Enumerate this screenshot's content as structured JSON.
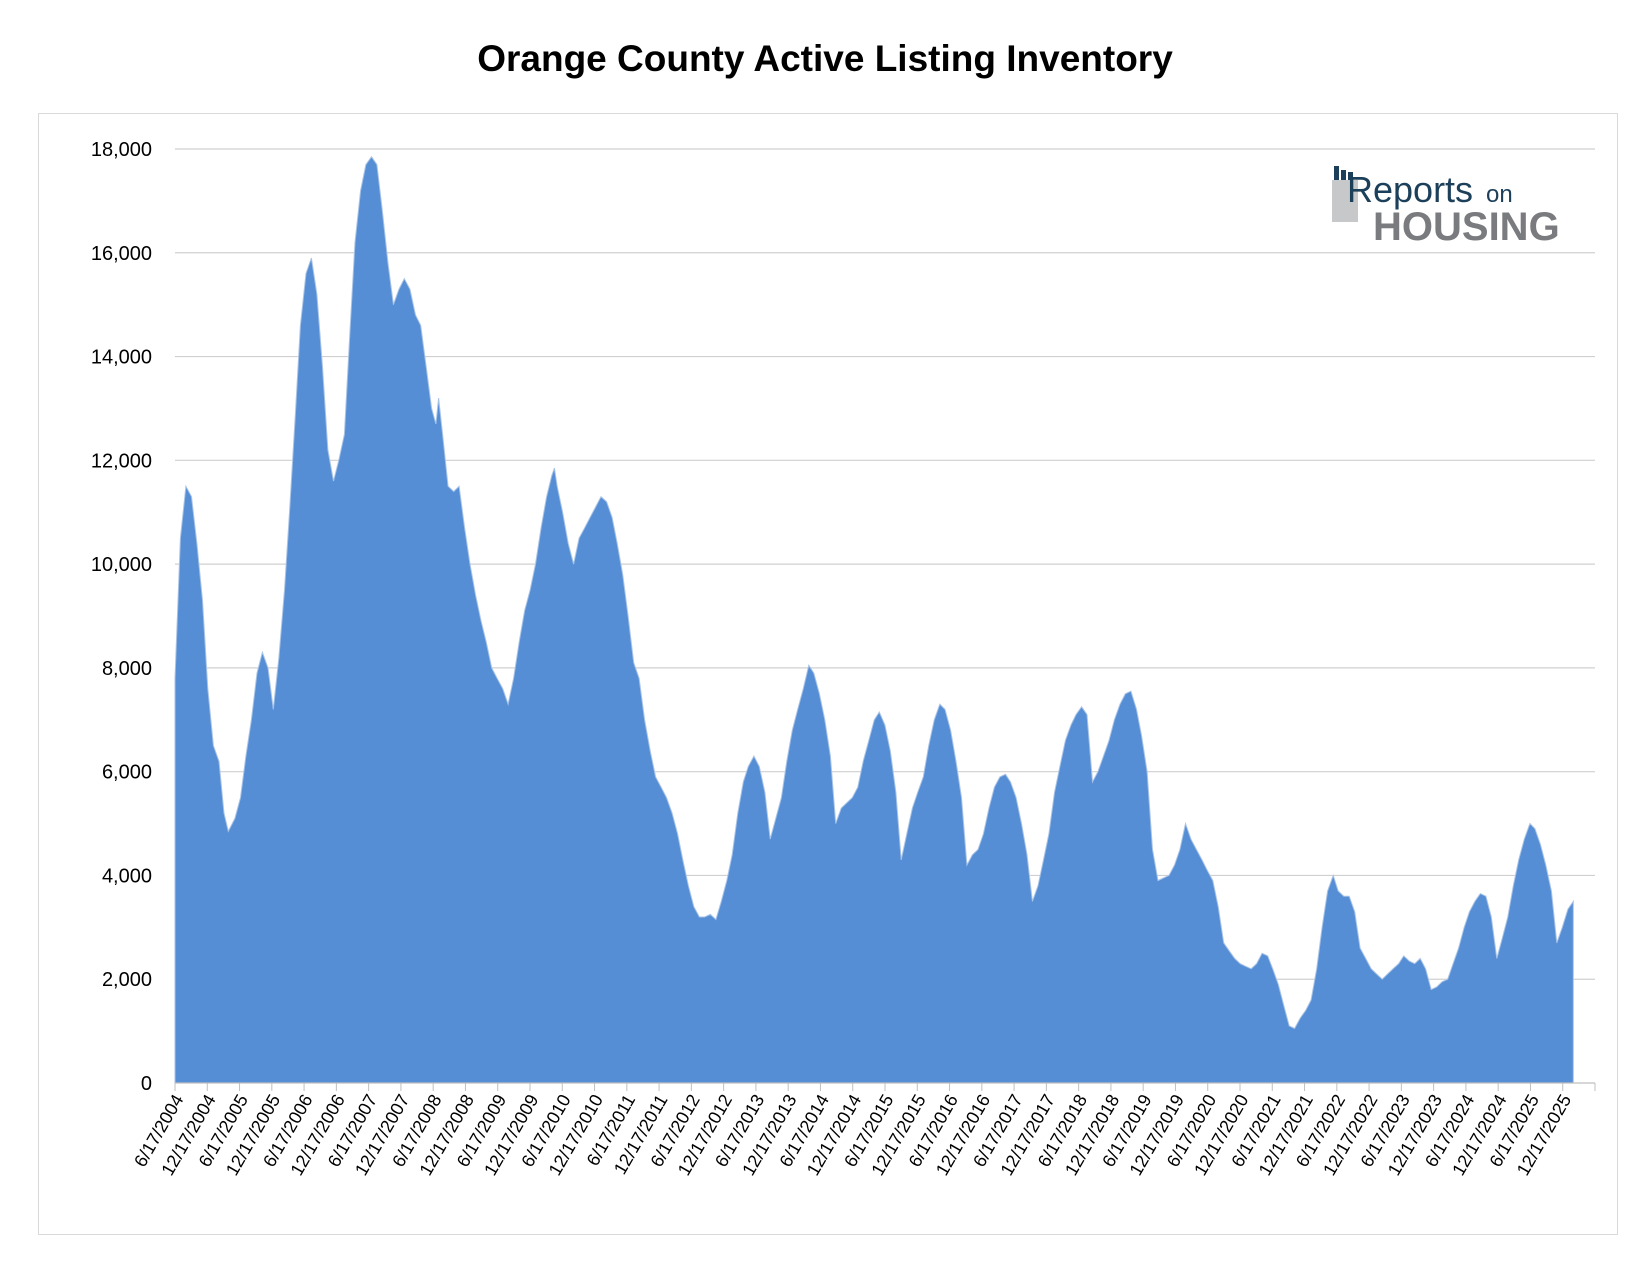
{
  "chart_data": {
    "type": "area",
    "title": "Orange County Active Listing Inventory",
    "xlabel": "",
    "ylabel": "",
    "ylim": [
      0,
      18000
    ],
    "y_ticks": [
      "0",
      "2,000",
      "4,000",
      "6,000",
      "8,000",
      "10,000",
      "12,000",
      "14,000",
      "16,000",
      "18,000"
    ],
    "x_ticks": [
      "6/17/2004",
      "12/17/2004",
      "6/17/2005",
      "12/17/2005",
      "6/17/2006",
      "12/17/2006",
      "6/17/2007",
      "12/17/2007",
      "6/17/2008",
      "12/17/2008",
      "6/17/2009",
      "12/17/2009",
      "6/17/2010",
      "12/17/2010",
      "6/17/2011",
      "12/17/2011",
      "6/17/2012",
      "12/17/2012",
      "6/17/2013",
      "12/17/2013",
      "6/17/2014",
      "12/17/2014",
      "6/17/2015",
      "12/17/2015",
      "6/17/2016",
      "12/17/2016",
      "6/17/2017",
      "12/17/2017",
      "6/17/2018",
      "12/17/2018",
      "6/17/2019",
      "12/17/2019",
      "6/17/2020",
      "12/17/2020",
      "6/17/2021",
      "12/17/2021",
      "6/17/2022",
      "12/17/2022",
      "6/17/2023",
      "12/17/2023",
      "6/17/2024",
      "12/17/2024",
      "6/17/2025",
      "12/17/2025"
    ],
    "x_start": "2004-06-17",
    "x_end": "2026-02-15",
    "grid": true,
    "color": "#558ed5",
    "series": [
      {
        "points": [
          [
            "2004-06-17",
            7800
          ],
          [
            "2004-07-17",
            10500
          ],
          [
            "2004-08-17",
            11500
          ],
          [
            "2004-09-17",
            11300
          ],
          [
            "2004-10-17",
            10400
          ],
          [
            "2004-11-17",
            9300
          ],
          [
            "2004-12-17",
            7600
          ],
          [
            "2005-01-17",
            6500
          ],
          [
            "2005-02-17",
            6200
          ],
          [
            "2005-03-17",
            5200
          ],
          [
            "2005-04-10",
            4850
          ],
          [
            "2005-05-17",
            5100
          ],
          [
            "2005-06-17",
            5500
          ],
          [
            "2005-07-17",
            6300
          ],
          [
            "2005-08-17",
            7000
          ],
          [
            "2005-09-17",
            7900
          ],
          [
            "2005-10-17",
            8300
          ],
          [
            "2005-11-17",
            8000
          ],
          [
            "2005-12-17",
            7200
          ],
          [
            "2006-01-17",
            8200
          ],
          [
            "2006-02-17",
            9500
          ],
          [
            "2006-03-17",
            11000
          ],
          [
            "2006-04-17",
            12800
          ],
          [
            "2006-05-17",
            14600
          ],
          [
            "2006-06-17",
            15600
          ],
          [
            "2006-07-17",
            15900
          ],
          [
            "2006-08-17",
            15200
          ],
          [
            "2006-09-17",
            13800
          ],
          [
            "2006-10-17",
            12200
          ],
          [
            "2006-11-17",
            11600
          ],
          [
            "2006-12-17",
            12000
          ],
          [
            "2007-01-17",
            12500
          ],
          [
            "2007-02-17",
            14500
          ],
          [
            "2007-03-17",
            16200
          ],
          [
            "2007-04-17",
            17200
          ],
          [
            "2007-05-17",
            17700
          ],
          [
            "2007-06-17",
            17850
          ],
          [
            "2007-07-17",
            17700
          ],
          [
            "2007-08-17",
            16800
          ],
          [
            "2007-09-17",
            15800
          ],
          [
            "2007-10-17",
            15000
          ],
          [
            "2007-11-17",
            15300
          ],
          [
            "2007-12-17",
            15500
          ],
          [
            "2008-01-17",
            15300
          ],
          [
            "2008-02-17",
            14800
          ],
          [
            "2008-03-17",
            14600
          ],
          [
            "2008-04-17",
            13800
          ],
          [
            "2008-05-17",
            13000
          ],
          [
            "2008-06-10",
            12700
          ],
          [
            "2008-06-25",
            13200
          ],
          [
            "2008-07-17",
            12500
          ],
          [
            "2008-08-17",
            11500
          ],
          [
            "2008-09-17",
            11400
          ],
          [
            "2008-10-17",
            11500
          ],
          [
            "2008-11-17",
            10700
          ],
          [
            "2008-12-17",
            10000
          ],
          [
            "2009-01-17",
            9400
          ],
          [
            "2009-02-17",
            8900
          ],
          [
            "2009-03-17",
            8500
          ],
          [
            "2009-04-17",
            8000
          ],
          [
            "2009-05-17",
            7800
          ],
          [
            "2009-06-17",
            7600
          ],
          [
            "2009-07-17",
            7300
          ],
          [
            "2009-08-17",
            7800
          ],
          [
            "2009-09-17",
            8500
          ],
          [
            "2009-10-17",
            9100
          ],
          [
            "2009-11-17",
            9500
          ],
          [
            "2009-12-17",
            10000
          ],
          [
            "2010-01-17",
            10700
          ],
          [
            "2010-02-17",
            11300
          ],
          [
            "2010-03-17",
            11700
          ],
          [
            "2010-04-01",
            11850
          ],
          [
            "2010-04-17",
            11500
          ],
          [
            "2010-05-17",
            11000
          ],
          [
            "2010-06-17",
            10400
          ],
          [
            "2010-07-17",
            10000
          ],
          [
            "2010-08-17",
            10500
          ],
          [
            "2010-09-17",
            10700
          ],
          [
            "2010-10-17",
            10900
          ],
          [
            "2010-11-17",
            11100
          ],
          [
            "2010-12-17",
            11300
          ],
          [
            "2011-01-17",
            11200
          ],
          [
            "2011-02-17",
            10900
          ],
          [
            "2011-03-17",
            10400
          ],
          [
            "2011-04-17",
            9800
          ],
          [
            "2011-05-17",
            9000
          ],
          [
            "2011-06-17",
            8100
          ],
          [
            "2011-07-17",
            7800
          ],
          [
            "2011-08-17",
            7000
          ],
          [
            "2011-09-17",
            6400
          ],
          [
            "2011-10-17",
            5900
          ],
          [
            "2011-11-17",
            5700
          ],
          [
            "2011-12-17",
            5500
          ],
          [
            "2012-01-17",
            5200
          ],
          [
            "2012-02-17",
            4800
          ],
          [
            "2012-03-17",
            4300
          ],
          [
            "2012-04-17",
            3800
          ],
          [
            "2012-05-17",
            3400
          ],
          [
            "2012-06-17",
            3200
          ],
          [
            "2012-07-17",
            3200
          ],
          [
            "2012-08-17",
            3250
          ],
          [
            "2012-09-17",
            3150
          ],
          [
            "2012-10-17",
            3500
          ],
          [
            "2012-11-17",
            3900
          ],
          [
            "2012-12-17",
            4400
          ],
          [
            "2013-01-17",
            5200
          ],
          [
            "2013-02-17",
            5800
          ],
          [
            "2013-03-17",
            6100
          ],
          [
            "2013-04-17",
            6300
          ],
          [
            "2013-05-17",
            6100
          ],
          [
            "2013-06-17",
            5600
          ],
          [
            "2013-07-17",
            4700
          ],
          [
            "2013-08-17",
            5100
          ],
          [
            "2013-09-17",
            5500
          ],
          [
            "2013-10-17",
            6200
          ],
          [
            "2013-11-17",
            6800
          ],
          [
            "2013-12-17",
            7200
          ],
          [
            "2014-01-17",
            7600
          ],
          [
            "2014-02-17",
            8050
          ],
          [
            "2014-03-17",
            7900
          ],
          [
            "2014-04-17",
            7500
          ],
          [
            "2014-05-17",
            7000
          ],
          [
            "2014-06-17",
            6300
          ],
          [
            "2014-07-17",
            5000
          ],
          [
            "2014-08-17",
            5300
          ],
          [
            "2014-09-17",
            5400
          ],
          [
            "2014-10-17",
            5500
          ],
          [
            "2014-11-17",
            5700
          ],
          [
            "2014-12-17",
            6200
          ],
          [
            "2015-01-17",
            6600
          ],
          [
            "2015-02-17",
            7000
          ],
          [
            "2015-03-17",
            7150
          ],
          [
            "2015-04-17",
            6900
          ],
          [
            "2015-05-17",
            6400
          ],
          [
            "2015-06-17",
            5600
          ],
          [
            "2015-07-17",
            4300
          ],
          [
            "2015-08-17",
            4800
          ],
          [
            "2015-09-17",
            5300
          ],
          [
            "2015-10-17",
            5600
          ],
          [
            "2015-11-17",
            5900
          ],
          [
            "2015-12-17",
            6500
          ],
          [
            "2016-01-17",
            7000
          ],
          [
            "2016-02-17",
            7300
          ],
          [
            "2016-03-17",
            7200
          ],
          [
            "2016-04-17",
            6800
          ],
          [
            "2016-05-17",
            6200
          ],
          [
            "2016-06-17",
            5500
          ],
          [
            "2016-07-17",
            4200
          ],
          [
            "2016-08-17",
            4400
          ],
          [
            "2016-09-17",
            4500
          ],
          [
            "2016-10-17",
            4800
          ],
          [
            "2016-11-17",
            5300
          ],
          [
            "2016-12-17",
            5700
          ],
          [
            "2017-01-17",
            5900
          ],
          [
            "2017-02-17",
            5950
          ],
          [
            "2017-03-17",
            5800
          ],
          [
            "2017-04-17",
            5500
          ],
          [
            "2017-05-17",
            5000
          ],
          [
            "2017-06-17",
            4400
          ],
          [
            "2017-07-17",
            3500
          ],
          [
            "2017-08-17",
            3800
          ],
          [
            "2017-09-17",
            4300
          ],
          [
            "2017-10-17",
            4800
          ],
          [
            "2017-11-17",
            5600
          ],
          [
            "2017-12-17",
            6100
          ],
          [
            "2018-01-17",
            6600
          ],
          [
            "2018-02-17",
            6900
          ],
          [
            "2018-03-17",
            7100
          ],
          [
            "2018-04-17",
            7250
          ],
          [
            "2018-05-17",
            7100
          ],
          [
            "2018-06-17",
            5800
          ],
          [
            "2018-07-17",
            6000
          ],
          [
            "2018-08-17",
            6300
          ],
          [
            "2018-09-17",
            6600
          ],
          [
            "2018-10-17",
            7000
          ],
          [
            "2018-11-17",
            7300
          ],
          [
            "2018-12-17",
            7500
          ],
          [
            "2019-01-17",
            7550
          ],
          [
            "2019-02-17",
            7200
          ],
          [
            "2019-03-17",
            6700
          ],
          [
            "2019-04-17",
            6000
          ],
          [
            "2019-05-17",
            4500
          ],
          [
            "2019-06-17",
            3900
          ],
          [
            "2019-07-17",
            3950
          ],
          [
            "2019-08-17",
            4000
          ],
          [
            "2019-09-17",
            4200
          ],
          [
            "2019-10-17",
            4500
          ],
          [
            "2019-11-17",
            5000
          ],
          [
            "2019-12-17",
            4700
          ],
          [
            "2020-01-17",
            4500
          ],
          [
            "2020-02-17",
            4300
          ],
          [
            "2020-03-17",
            4100
          ],
          [
            "2020-04-17",
            3900
          ],
          [
            "2020-05-17",
            3400
          ],
          [
            "2020-06-17",
            2700
          ],
          [
            "2020-07-17",
            2550
          ],
          [
            "2020-08-17",
            2400
          ],
          [
            "2020-09-17",
            2300
          ],
          [
            "2020-10-17",
            2250
          ],
          [
            "2020-11-17",
            2200
          ],
          [
            "2020-12-17",
            2300
          ],
          [
            "2021-01-17",
            2500
          ],
          [
            "2021-02-17",
            2450
          ],
          [
            "2021-03-17",
            2200
          ],
          [
            "2021-04-17",
            1900
          ],
          [
            "2021-05-17",
            1500
          ],
          [
            "2021-06-17",
            1100
          ],
          [
            "2021-07-17",
            1050
          ],
          [
            "2021-08-17",
            1250
          ],
          [
            "2021-09-17",
            1400
          ],
          [
            "2021-10-17",
            1600
          ],
          [
            "2021-11-17",
            2200
          ],
          [
            "2021-12-17",
            3000
          ],
          [
            "2022-01-17",
            3700
          ],
          [
            "2022-02-17",
            4000
          ],
          [
            "2022-03-17",
            3700
          ],
          [
            "2022-04-17",
            3600
          ],
          [
            "2022-05-17",
            3600
          ],
          [
            "2022-06-17",
            3300
          ],
          [
            "2022-07-17",
            2600
          ],
          [
            "2022-08-17",
            2400
          ],
          [
            "2022-09-17",
            2200
          ],
          [
            "2022-10-17",
            2100
          ],
          [
            "2022-11-17",
            2000
          ],
          [
            "2022-12-17",
            2100
          ],
          [
            "2023-01-17",
            2200
          ],
          [
            "2023-02-17",
            2300
          ],
          [
            "2023-03-17",
            2450
          ],
          [
            "2023-04-17",
            2350
          ],
          [
            "2023-05-17",
            2300
          ],
          [
            "2023-06-17",
            2400
          ],
          [
            "2023-07-17",
            2200
          ],
          [
            "2023-08-17",
            1800
          ],
          [
            "2023-09-17",
            1850
          ],
          [
            "2023-10-17",
            1950
          ],
          [
            "2023-11-17",
            2000
          ],
          [
            "2023-12-17",
            2300
          ],
          [
            "2024-01-17",
            2600
          ],
          [
            "2024-02-17",
            3000
          ],
          [
            "2024-03-17",
            3300
          ],
          [
            "2024-04-17",
            3500
          ],
          [
            "2024-05-17",
            3650
          ],
          [
            "2024-06-17",
            3600
          ],
          [
            "2024-07-17",
            3200
          ],
          [
            "2024-08-17",
            2400
          ],
          [
            "2024-09-17",
            2800
          ],
          [
            "2024-10-17",
            3200
          ],
          [
            "2024-11-17",
            3800
          ],
          [
            "2024-12-17",
            4300
          ],
          [
            "2025-01-17",
            4700
          ],
          [
            "2025-02-17",
            5000
          ],
          [
            "2025-03-17",
            4900
          ],
          [
            "2025-04-17",
            4600
          ],
          [
            "2025-05-17",
            4200
          ],
          [
            "2025-06-17",
            3700
          ],
          [
            "2025-07-17",
            2700
          ],
          [
            "2025-08-17",
            3000
          ],
          [
            "2025-09-17",
            3350
          ],
          [
            "2025-10-17",
            3500
          ]
        ]
      }
    ]
  },
  "logo": {
    "line1": "Reports",
    "line1_small": "on",
    "line2": "HOUSING"
  }
}
